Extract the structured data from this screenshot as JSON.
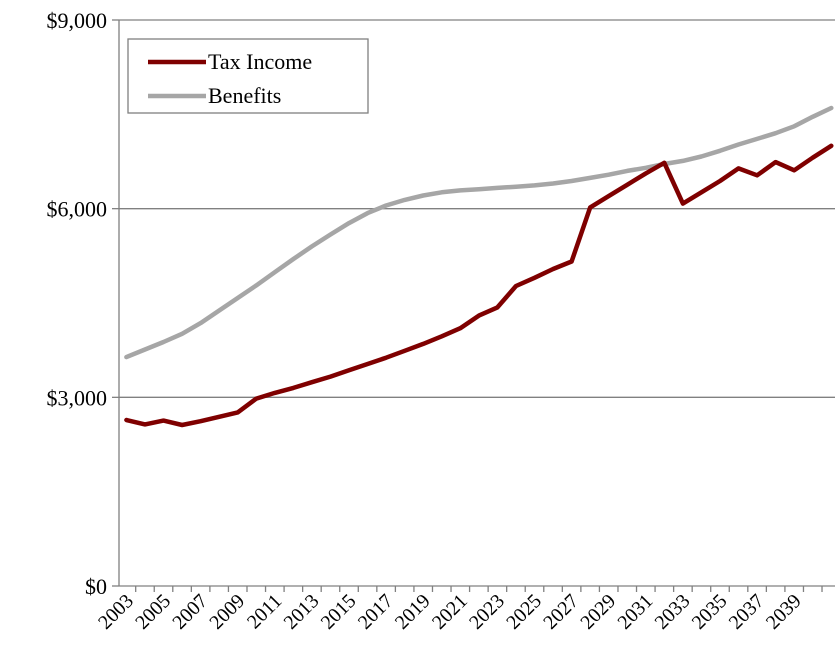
{
  "chart_data": {
    "type": "line",
    "title": "",
    "xlabel": "",
    "ylabel": "",
    "ylim": [
      0,
      9000
    ],
    "yticks": [
      0,
      3000,
      6000,
      9000
    ],
    "ytick_labels": [
      "$0",
      "$3,000",
      "$6,000",
      "$9,000"
    ],
    "xtick_labels": [
      "2003",
      "2005",
      "2007",
      "2009",
      "2011",
      "2013",
      "2015",
      "2017",
      "2019",
      "2021",
      "2023",
      "2025",
      "2027",
      "2029",
      "2031",
      "2033",
      "2035",
      "2037",
      "2039"
    ],
    "grid": "horizontal",
    "legend_position": "top-left",
    "x": [
      2003,
      2004,
      2005,
      2006,
      2007,
      2008,
      2009,
      2010,
      2011,
      2012,
      2013,
      2014,
      2015,
      2016,
      2017,
      2018,
      2019,
      2020,
      2021,
      2022,
      2023,
      2024,
      2025,
      2026,
      2027,
      2028,
      2029,
      2030,
      2031,
      2032,
      2033,
      2034,
      2035,
      2036,
      2037,
      2038,
      2039,
      2040,
      2041
    ],
    "series": [
      {
        "name": "Tax Income",
        "color": "#7f0000",
        "values": [
          2640,
          2570,
          2630,
          2560,
          2620,
          2690,
          2760,
          2980,
          3070,
          3150,
          3240,
          3330,
          3430,
          3530,
          3630,
          3740,
          3850,
          3970,
          4100,
          4300,
          4430,
          4770,
          4900,
          5040,
          5160,
          6020,
          6200,
          6380,
          6560,
          6730,
          6080,
          6260,
          6440,
          6640,
          6530,
          6740,
          6610,
          6810,
          7000
        ]
      },
      {
        "name": "Benefits",
        "color": "#a6a6a6",
        "values": [
          3640,
          3760,
          3880,
          4010,
          4180,
          4380,
          4580,
          4780,
          4990,
          5200,
          5400,
          5590,
          5770,
          5930,
          6050,
          6140,
          6210,
          6260,
          6290,
          6310,
          6330,
          6350,
          6370,
          6400,
          6440,
          6490,
          6540,
          6600,
          6650,
          6710,
          6760,
          6830,
          6920,
          7020,
          7110,
          7200,
          7310,
          7460,
          7600
        ]
      }
    ]
  }
}
